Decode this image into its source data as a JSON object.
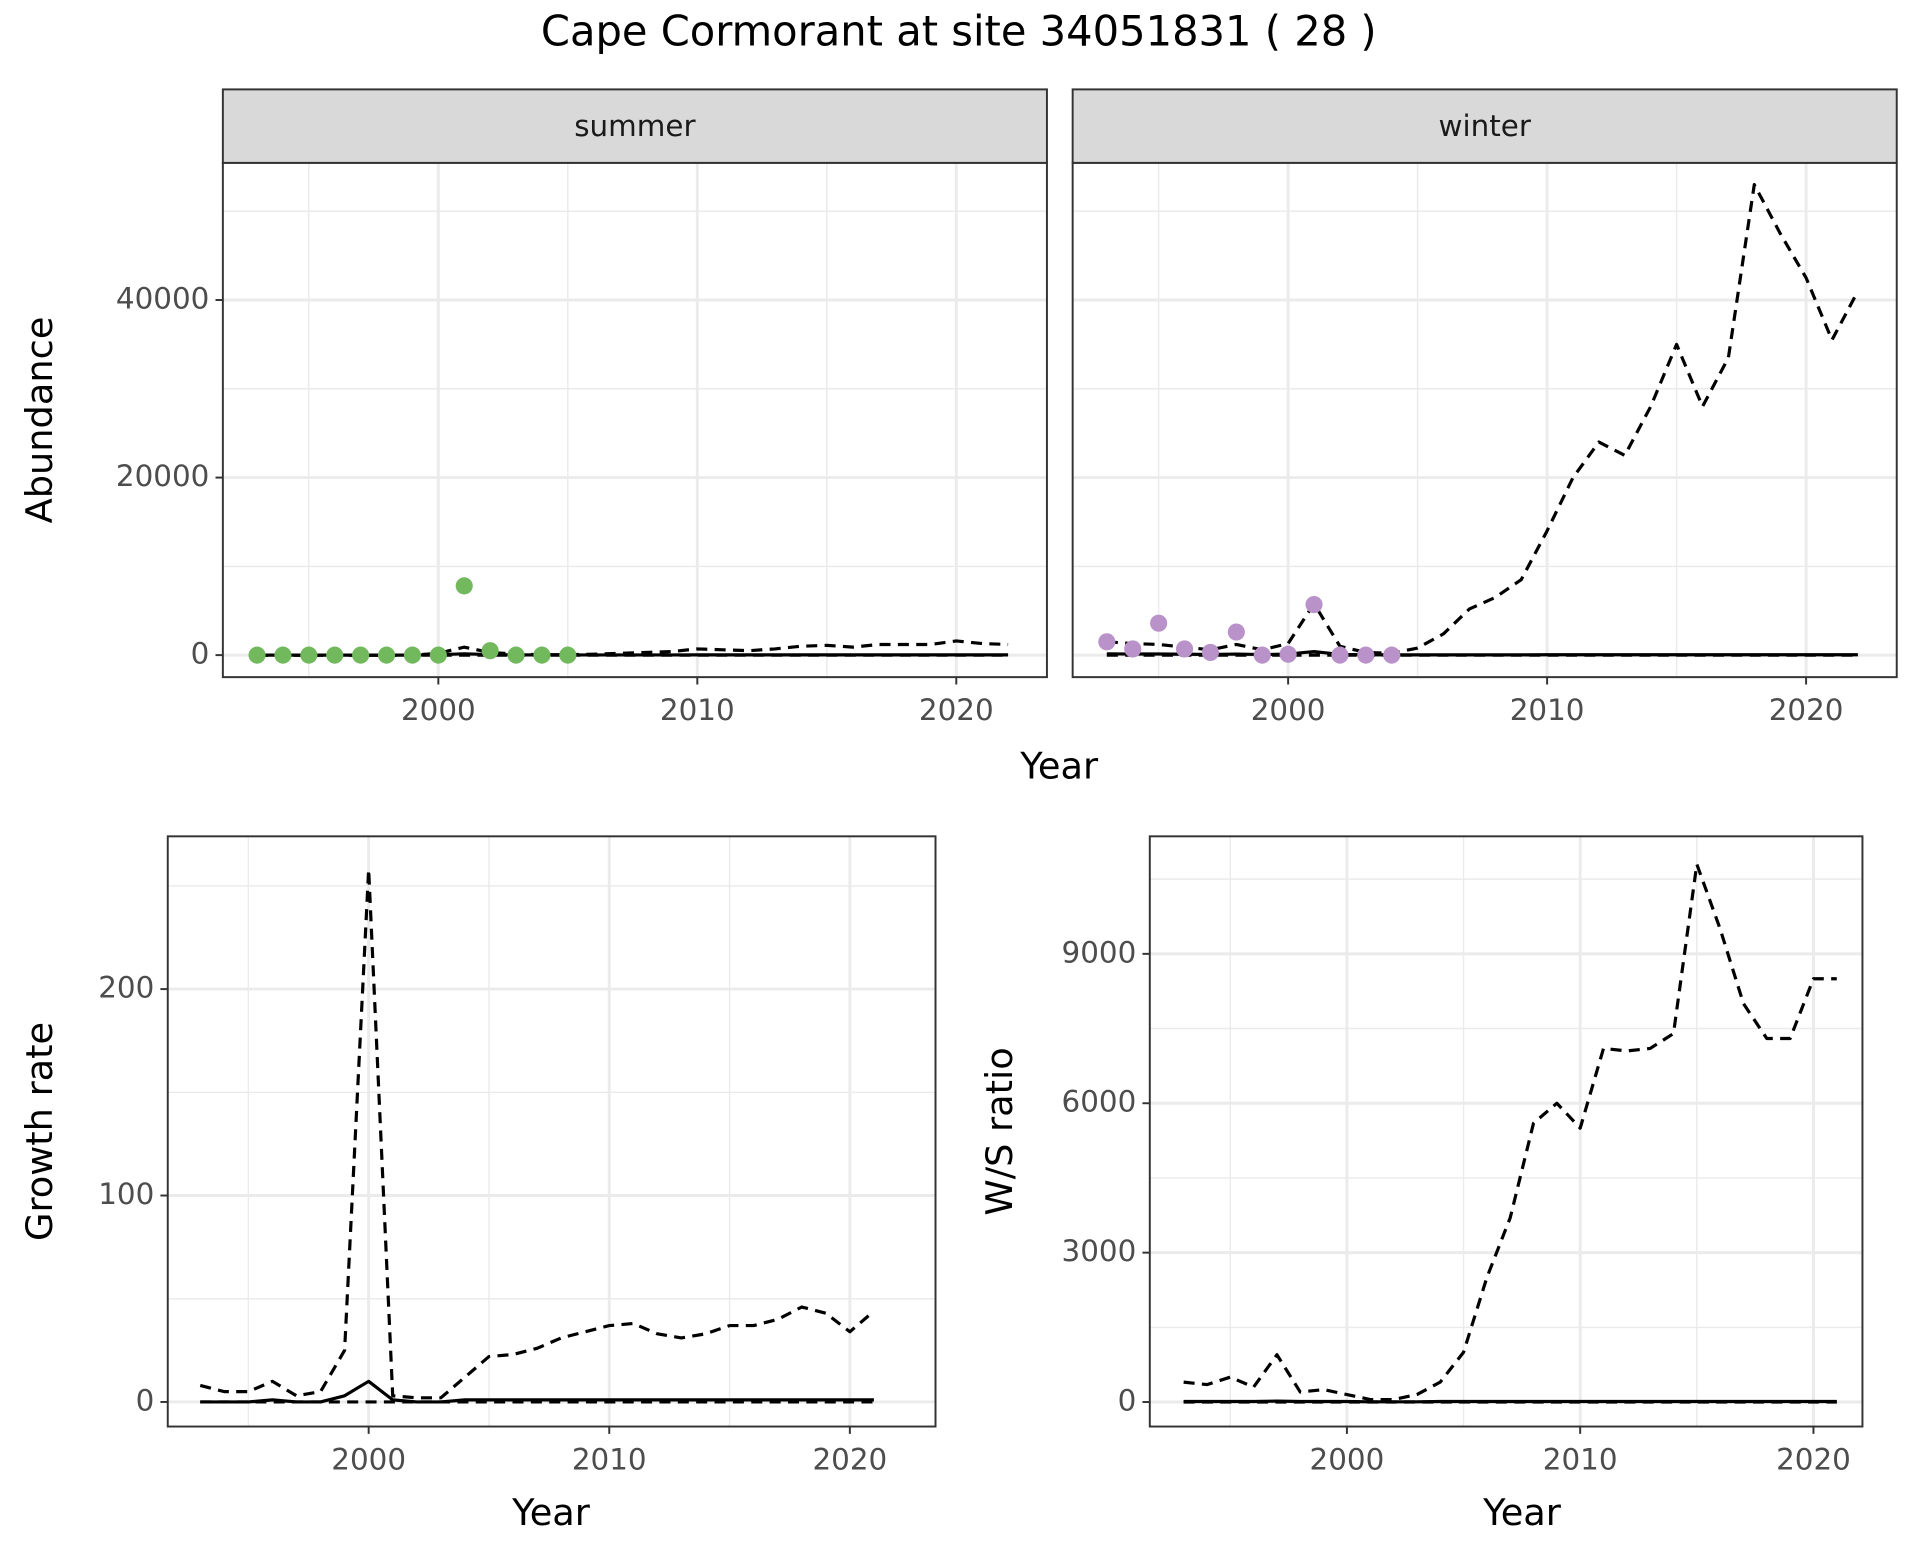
{
  "title": "Cape Cormorant at site 34051831 ( 28 )",
  "chart_data": [
    {
      "type": "line",
      "strip": "summer",
      "xlabel": "Year",
      "ylabel": "Abundance",
      "xlim": [
        1991.68,
        2023.5
      ],
      "xticks": [
        2000,
        2010,
        2020
      ],
      "ylim": [
        -2480,
        55450
      ],
      "yticks": [
        0,
        20000,
        40000
      ],
      "grid": true,
      "series": [
        {
          "kind": "line",
          "dash": true,
          "color": "#000000",
          "x": [
            1993,
            1994,
            1995,
            1996,
            1997,
            1998,
            1999,
            2000,
            2001,
            2002,
            2003,
            2004,
            2005,
            2006,
            2007,
            2008,
            2009,
            2010,
            2011,
            2012,
            2013,
            2014,
            2015,
            2016,
            2017,
            2018,
            2019,
            2020,
            2021,
            2022
          ],
          "values": [
            0,
            0,
            0,
            0,
            0,
            0,
            0,
            200,
            900,
            300,
            100,
            50,
            50,
            100,
            200,
            300,
            400,
            700,
            600,
            500,
            700,
            1000,
            1100,
            900,
            1200,
            1200,
            1200,
            1600,
            1300,
            1200
          ]
        },
        {
          "kind": "line",
          "dash": false,
          "color": "#000000",
          "x": [
            1993,
            1994,
            1995,
            1996,
            1997,
            1998,
            1999,
            2000,
            2001,
            2002,
            2003,
            2004,
            2005,
            2006,
            2007,
            2008,
            2009,
            2010,
            2011,
            2012,
            2013,
            2014,
            2015,
            2016,
            2017,
            2018,
            2019,
            2020,
            2021,
            2022
          ],
          "values": [
            0,
            0,
            0,
            0,
            0,
            0,
            0,
            50,
            150,
            60,
            30,
            20,
            20,
            20,
            20,
            20,
            20,
            30,
            30,
            30,
            30,
            30,
            30,
            30,
            30,
            30,
            30,
            30,
            30,
            30
          ]
        },
        {
          "kind": "line",
          "dash": true,
          "color": "#000000",
          "x": [
            1993,
            1994,
            1995,
            1996,
            1997,
            1998,
            1999,
            2000,
            2001,
            2002,
            2003,
            2004,
            2005,
            2006,
            2007,
            2008,
            2009,
            2010,
            2011,
            2012,
            2013,
            2014,
            2015,
            2016,
            2017,
            2018,
            2019,
            2020,
            2021,
            2022
          ],
          "values": [
            0,
            0,
            0,
            0,
            0,
            0,
            0,
            0,
            0,
            0,
            0,
            0,
            0,
            0,
            0,
            0,
            0,
            0,
            0,
            0,
            0,
            0,
            0,
            0,
            0,
            0,
            0,
            0,
            0,
            0
          ]
        },
        {
          "kind": "points",
          "color": "#72b95e",
          "x": [
            1993,
            1994,
            1995,
            1996,
            1997,
            1998,
            1999,
            2000,
            2001,
            2002,
            2003,
            2004,
            2005
          ],
          "values": [
            0,
            0,
            0,
            0,
            0,
            0,
            0,
            0,
            7800,
            500,
            0,
            0,
            0
          ]
        }
      ]
    },
    {
      "type": "line",
      "strip": "winter",
      "xlim": [
        1991.68,
        2023.5
      ],
      "xticks": [
        2000,
        2010,
        2020
      ],
      "grid": true,
      "series": [
        {
          "kind": "line",
          "dash": true,
          "color": "#000000",
          "x": [
            1993,
            1994,
            1995,
            1996,
            1997,
            1998,
            1999,
            2000,
            2001,
            2002,
            2003,
            2004,
            2005,
            2006,
            2007,
            2008,
            2009,
            2010,
            2011,
            2012,
            2013,
            2014,
            2015,
            2016,
            2017,
            2018,
            2019,
            2020,
            2021,
            2022
          ],
          "values": [
            1500,
            1300,
            1200,
            900,
            600,
            1200,
            600,
            1300,
            5800,
            1000,
            300,
            200,
            800,
            2400,
            5200,
            6500,
            8500,
            14000,
            20000,
            24000,
            22500,
            28000,
            35000,
            28000,
            33500,
            53000,
            47500,
            42500,
            35500,
            41000
          ]
        },
        {
          "kind": "line",
          "dash": false,
          "color": "#000000",
          "x": [
            1993,
            1994,
            1995,
            1996,
            1997,
            1998,
            1999,
            2000,
            2001,
            2002,
            2003,
            2004,
            2005,
            2006,
            2007,
            2008,
            2009,
            2010,
            2011,
            2012,
            2013,
            2014,
            2015,
            2016,
            2017,
            2018,
            2019,
            2020,
            2021,
            2022
          ],
          "values": [
            150,
            120,
            130,
            100,
            80,
            120,
            60,
            120,
            400,
            80,
            40,
            30,
            30,
            30,
            30,
            30,
            30,
            40,
            40,
            40,
            40,
            40,
            40,
            40,
            40,
            40,
            40,
            40,
            40,
            40
          ]
        },
        {
          "kind": "line",
          "dash": true,
          "color": "#000000",
          "x": [
            1993,
            1994,
            1995,
            1996,
            1997,
            1998,
            1999,
            2000,
            2001,
            2002,
            2003,
            2004,
            2005,
            2006,
            2007,
            2008,
            2009,
            2010,
            2011,
            2012,
            2013,
            2014,
            2015,
            2016,
            2017,
            2018,
            2019,
            2020,
            2021,
            2022
          ],
          "values": [
            0,
            0,
            0,
            0,
            0,
            0,
            0,
            0,
            0,
            0,
            0,
            0,
            0,
            0,
            0,
            0,
            0,
            0,
            0,
            0,
            0,
            0,
            0,
            0,
            0,
            0,
            0,
            0,
            0,
            0
          ]
        },
        {
          "kind": "points",
          "color": "#b992c9",
          "x": [
            1993,
            1994,
            1995,
            1996,
            1997,
            1998,
            1999,
            2000,
            2001,
            2002,
            2003,
            2004
          ],
          "values": [
            1500,
            700,
            3600,
            700,
            300,
            2600,
            0,
            100,
            5700,
            0,
            0,
            0
          ]
        }
      ]
    },
    {
      "type": "line",
      "xlabel": "Year",
      "ylabel": "Growth rate",
      "xlim": [
        1991.65,
        2023.56
      ],
      "xticks": [
        2000,
        2010,
        2020
      ],
      "ylim": [
        -11.9,
        274
      ],
      "yticks": [
        0,
        100,
        200
      ],
      "grid": true,
      "series": [
        {
          "kind": "line",
          "dash": true,
          "color": "#000000",
          "x": [
            1993,
            1994,
            1995,
            1996,
            1997,
            1998,
            1999,
            2000,
            2001,
            2002,
            2003,
            2004,
            2005,
            2006,
            2007,
            2008,
            2009,
            2010,
            2011,
            2012,
            2013,
            2014,
            2015,
            2016,
            2017,
            2018,
            2019,
            2020,
            2021
          ],
          "values": [
            8,
            5,
            5,
            10,
            3,
            5,
            25,
            258,
            3,
            2,
            2,
            12,
            22,
            23,
            26,
            31,
            34,
            37,
            38,
            33,
            31,
            33,
            37,
            37,
            40,
            46,
            43,
            34,
            44
          ]
        },
        {
          "kind": "line",
          "dash": false,
          "color": "#000000",
          "x": [
            1993,
            1994,
            1995,
            1996,
            1997,
            1998,
            1999,
            2000,
            2001,
            2002,
            2003,
            2004,
            2005,
            2006,
            2007,
            2008,
            2009,
            2010,
            2011,
            2012,
            2013,
            2014,
            2015,
            2016,
            2017,
            2018,
            2019,
            2020,
            2021
          ],
          "values": [
            0,
            0,
            0,
            1,
            0,
            0,
            3,
            10,
            1,
            0,
            0,
            1,
            1,
            1,
            1,
            1,
            1,
            1,
            1,
            1,
            1,
            1,
            1,
            1,
            1,
            1,
            1,
            1,
            1
          ]
        },
        {
          "kind": "line",
          "dash": true,
          "color": "#000000",
          "x": [
            1993,
            1994,
            1995,
            1996,
            1997,
            1998,
            1999,
            2000,
            2001,
            2002,
            2003,
            2004,
            2005,
            2006,
            2007,
            2008,
            2009,
            2010,
            2011,
            2012,
            2013,
            2014,
            2015,
            2016,
            2017,
            2018,
            2019,
            2020,
            2021
          ],
          "values": [
            0,
            0,
            0,
            0,
            0,
            0,
            0,
            0,
            0,
            0,
            0,
            0,
            0,
            0,
            0,
            0,
            0,
            0,
            0,
            0,
            0,
            0,
            0,
            0,
            0,
            0,
            0,
            0,
            0
          ]
        }
      ]
    },
    {
      "type": "line",
      "xlabel": "Year",
      "ylabel": "W/S ratio",
      "xlim": [
        1991.55,
        2022.1
      ],
      "xticks": [
        2000,
        2010,
        2020
      ],
      "ylim": [
        -492,
        11360
      ],
      "yticks": [
        0,
        3000,
        6000,
        9000
      ],
      "grid": true,
      "series": [
        {
          "kind": "line",
          "dash": true,
          "color": "#000000",
          "x": [
            1993,
            1994,
            1995,
            1996,
            1997,
            1998,
            1999,
            2000,
            2001,
            2002,
            2003,
            2004,
            2005,
            2006,
            2007,
            2008,
            2009,
            2010,
            2011,
            2012,
            2013,
            2014,
            2015,
            2016,
            2017,
            2018,
            2019,
            2020,
            2021
          ],
          "values": [
            400,
            350,
            500,
            300,
            950,
            200,
            250,
            150,
            50,
            50,
            150,
            400,
            1000,
            2500,
            3700,
            5600,
            6000,
            5500,
            7100,
            7050,
            7100,
            7400,
            10800,
            9500,
            8000,
            7300,
            7300,
            8500,
            8500
          ]
        },
        {
          "kind": "line",
          "dash": false,
          "color": "#000000",
          "x": [
            1993,
            1994,
            1995,
            1996,
            1997,
            1998,
            1999,
            2000,
            2001,
            2002,
            2003,
            2004,
            2005,
            2006,
            2007,
            2008,
            2009,
            2010,
            2011,
            2012,
            2013,
            2014,
            2015,
            2016,
            2017,
            2018,
            2019,
            2020,
            2021
          ],
          "values": [
            10,
            10,
            10,
            10,
            20,
            10,
            10,
            10,
            5,
            5,
            5,
            10,
            10,
            10,
            10,
            10,
            10,
            10,
            10,
            10,
            10,
            10,
            10,
            10,
            10,
            10,
            10,
            10,
            10
          ]
        },
        {
          "kind": "line",
          "dash": true,
          "color": "#000000",
          "x": [
            1993,
            1994,
            1995,
            1996,
            1997,
            1998,
            1999,
            2000,
            2001,
            2002,
            2003,
            2004,
            2005,
            2006,
            2007,
            2008,
            2009,
            2010,
            2011,
            2012,
            2013,
            2014,
            2015,
            2016,
            2017,
            2018,
            2019,
            2020,
            2021
          ],
          "values": [
            0,
            0,
            0,
            0,
            0,
            0,
            0,
            0,
            0,
            0,
            0,
            0,
            0,
            0,
            0,
            0,
            0,
            0,
            0,
            0,
            0,
            0,
            0,
            0,
            0,
            0,
            0,
            0,
            0
          ]
        }
      ]
    }
  ]
}
